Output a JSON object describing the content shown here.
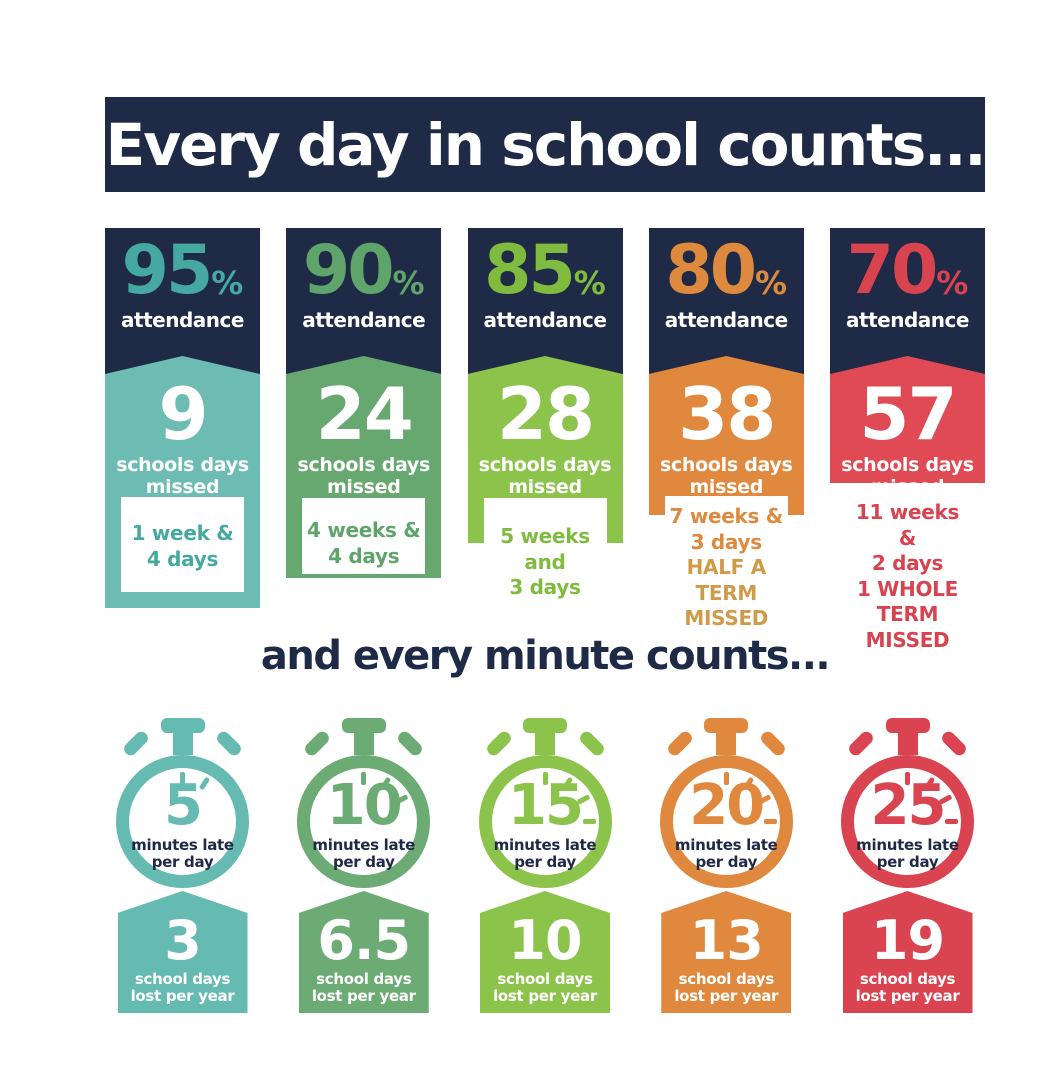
{
  "banner": {
    "title": "Every day in school counts..."
  },
  "subtitle": "and every minute counts...",
  "labels": {
    "attendance": "attendance",
    "percent_sign": "%",
    "missed_line1": "schools days",
    "missed_line2": "missed",
    "late_line1": "minutes late",
    "late_line2": "per day",
    "lost_line1": "school days",
    "lost_line2": "lost per year"
  },
  "colors": {
    "navy": "#1f2a47",
    "background": "#ffffff",
    "white_text": "#ffffff"
  },
  "attendance_columns": [
    {
      "percent": "95",
      "days_missed": "9",
      "duration_line1": "1 week &",
      "duration_line2": "4 days",
      "colors": {
        "body": "#6cbcb4",
        "accent": "#46a9a1"
      }
    },
    {
      "percent": "90",
      "days_missed": "24",
      "duration_line1": "4 weeks &",
      "duration_line2": "4 days",
      "colors": {
        "body": "#67a770",
        "accent": "#5fa46a"
      }
    },
    {
      "percent": "85",
      "days_missed": "28",
      "duration_line1": "5 weeks and",
      "duration_line2": "3 days",
      "colors": {
        "body": "#8cc34b",
        "accent": "#7fbb3e"
      }
    },
    {
      "percent": "80",
      "days_missed": "38",
      "duration_line1": "7 weeks &",
      "duration_line2": "3 days",
      "term_line1": "HALF A TERM",
      "term_line2": "MISSED",
      "colors": {
        "body": "#e0883d",
        "accent": "#dd8a3e",
        "term": "#cf9b49"
      }
    },
    {
      "percent": "70",
      "days_missed": "57",
      "duration_line1": "11 weeks &",
      "duration_line2": "2 days",
      "term_line1": "1 WHOLE",
      "term_line2": "TERM MISSED",
      "colors": {
        "body": "#e04a54",
        "accent": "#d84350",
        "term": "#d84350"
      }
    }
  ],
  "minute_columns": [
    {
      "minutes": "5",
      "days_lost": "3",
      "color": "#65bab1"
    },
    {
      "minutes": "10",
      "days_lost": "6.5",
      "color": "#6cab74"
    },
    {
      "minutes": "15",
      "days_lost": "10",
      "color": "#8cc34b"
    },
    {
      "minutes": "20",
      "days_lost": "13",
      "color": "#e0883d"
    },
    {
      "minutes": "25",
      "days_lost": "19",
      "color": "#da4350"
    }
  ],
  "chart_data": [
    {
      "type": "table",
      "title": "Every day in school counts...",
      "columns": [
        "attendance_percent",
        "school_days_missed",
        "equivalent_duration"
      ],
      "rows": [
        [
          95,
          9,
          "1 week & 4 days"
        ],
        [
          90,
          24,
          "4 weeks & 4 days"
        ],
        [
          85,
          28,
          "5 weeks and 3 days"
        ],
        [
          80,
          38,
          "7 weeks & 3 days HALF A TERM MISSED"
        ],
        [
          70,
          57,
          "11 weeks & 2 days 1 WHOLE TERM MISSED"
        ]
      ]
    },
    {
      "type": "table",
      "title": "and every minute counts...",
      "columns": [
        "minutes_late_per_day",
        "school_days_lost_per_year"
      ],
      "rows": [
        [
          5,
          3
        ],
        [
          10,
          6.5
        ],
        [
          15,
          10
        ],
        [
          20,
          13
        ],
        [
          25,
          19
        ]
      ]
    }
  ]
}
